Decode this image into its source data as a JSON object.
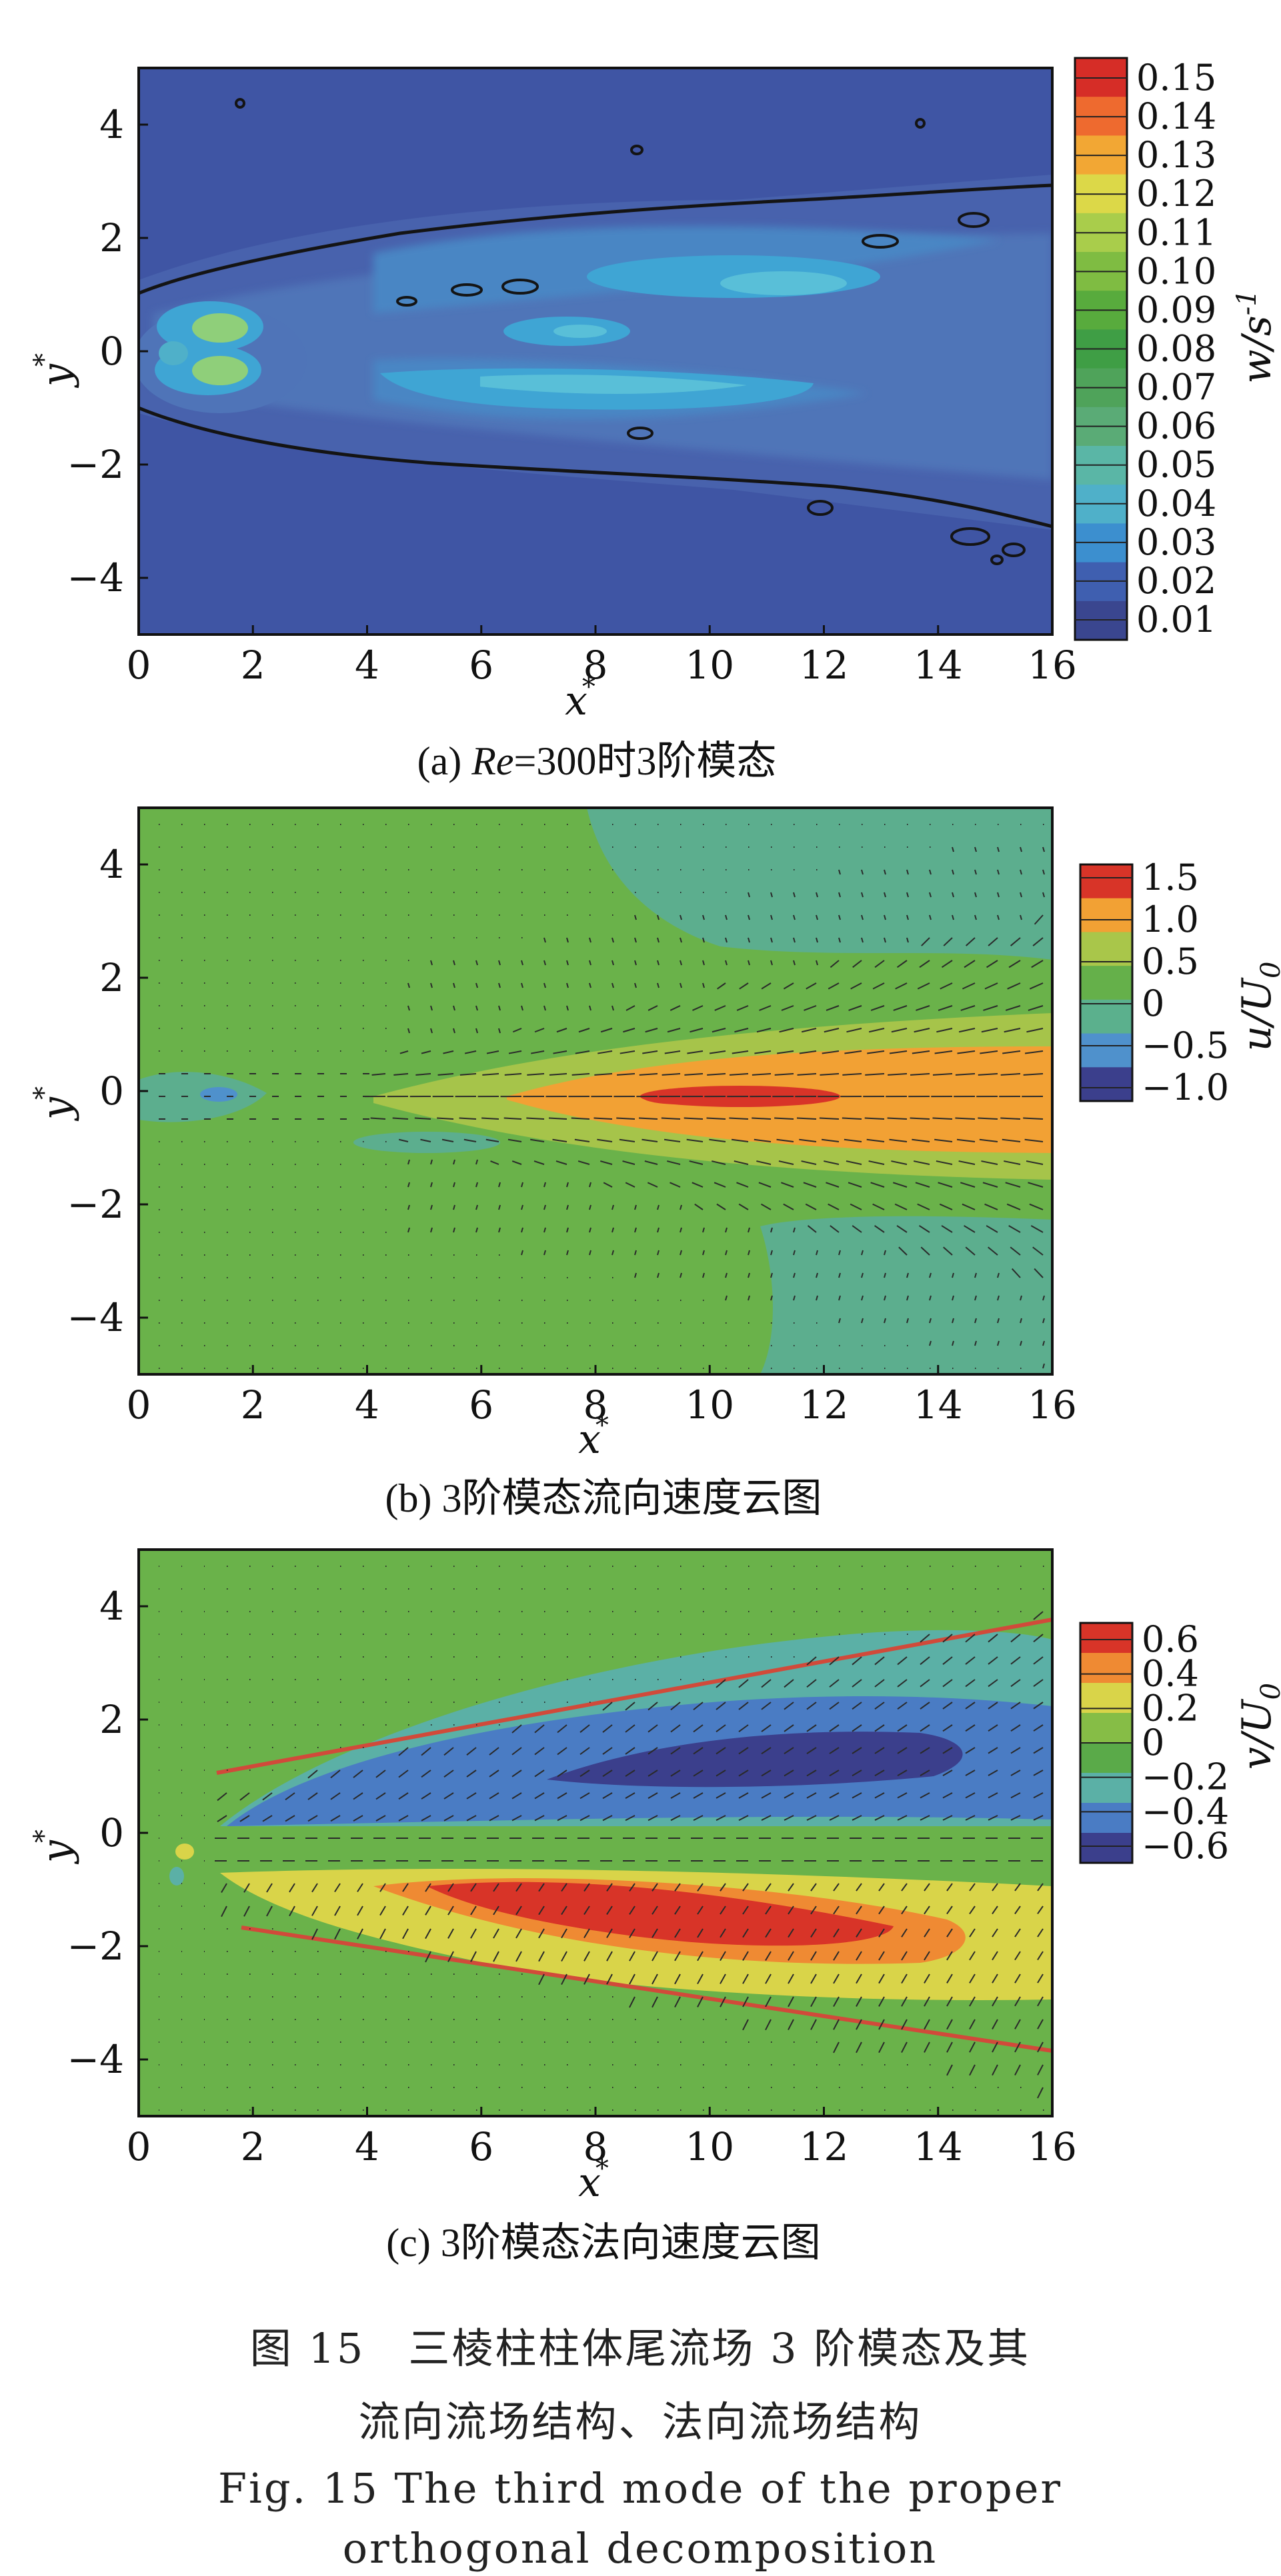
{
  "panels": [
    {
      "id": "a",
      "caption_pre": "(a) ",
      "caption_em": "Re",
      "caption_post": "=300时3阶模态",
      "colorbar_title": "w/s",
      "colorbar_title_sup": "-1",
      "colorbar_levels": [
        "0.15",
        "0.14",
        "0.13",
        "0.12",
        "0.11",
        "0.10",
        "0.09",
        "0.08",
        "0.07",
        "0.06",
        "0.05",
        "0.04",
        "0.03",
        "0.02",
        "0.01"
      ],
      "colorbar_colors": [
        "#d62d27",
        "#ee6a2f",
        "#f2a734",
        "#dcd848",
        "#a9cd4b",
        "#7fbc42",
        "#58ab3d",
        "#3f9e45",
        "#4fa35a",
        "#5aab76",
        "#5ab6a6",
        "#4fb0c9",
        "#3c8fcf",
        "#3f5fb0",
        "#3a468f"
      ],
      "background": "#3f55a4"
    },
    {
      "id": "b",
      "caption": "(b) 3阶模态流向速度云图",
      "colorbar_title": "u/U",
      "colorbar_title_sub": "0",
      "colorbar_levels": [
        "1.5",
        "1.0",
        "0.5",
        "0",
        "−0.5",
        "−1.0"
      ],
      "colorbar_colors": [
        "#d83428",
        "#f2a134",
        "#a9c64a",
        "#65b04a",
        "#5bb08d",
        "#4f91cc",
        "#3b3f8c"
      ],
      "background": "#6ab24a"
    },
    {
      "id": "c",
      "caption": "(c) 3阶模态法向速度云图",
      "colorbar_title": "v/U",
      "colorbar_title_sub": "0",
      "colorbar_levels": [
        "0.6",
        "0.4",
        "0.2",
        "0",
        "−0.2",
        "−0.4",
        "−0.6"
      ],
      "colorbar_colors": [
        "#d83428",
        "#ef8a33",
        "#d9d449",
        "#86bd46",
        "#5aaa49",
        "#5bb0a6",
        "#4a7cc4",
        "#3b3f8c"
      ],
      "background": "#6ab24a"
    }
  ],
  "axes": {
    "xlabel": "x",
    "ylabel": "y",
    "label_sup": "*",
    "x_ticks": [
      "0",
      "2",
      "4",
      "6",
      "8",
      "10",
      "12",
      "14",
      "16"
    ],
    "y_ticks": [
      "4",
      "2",
      "0",
      "−2",
      "−4"
    ],
    "xlim": [
      0,
      16
    ],
    "ylim": [
      -5,
      5
    ]
  },
  "figure_caption": {
    "zh_line1": "图 15　三棱柱柱体尾流场 3 阶模态及其",
    "zh_line2": "流向流场结构、法向流场结构",
    "en_line1": "Fig. 15   The third mode of the proper",
    "en_line2": "orthogonal decomposition"
  }
}
